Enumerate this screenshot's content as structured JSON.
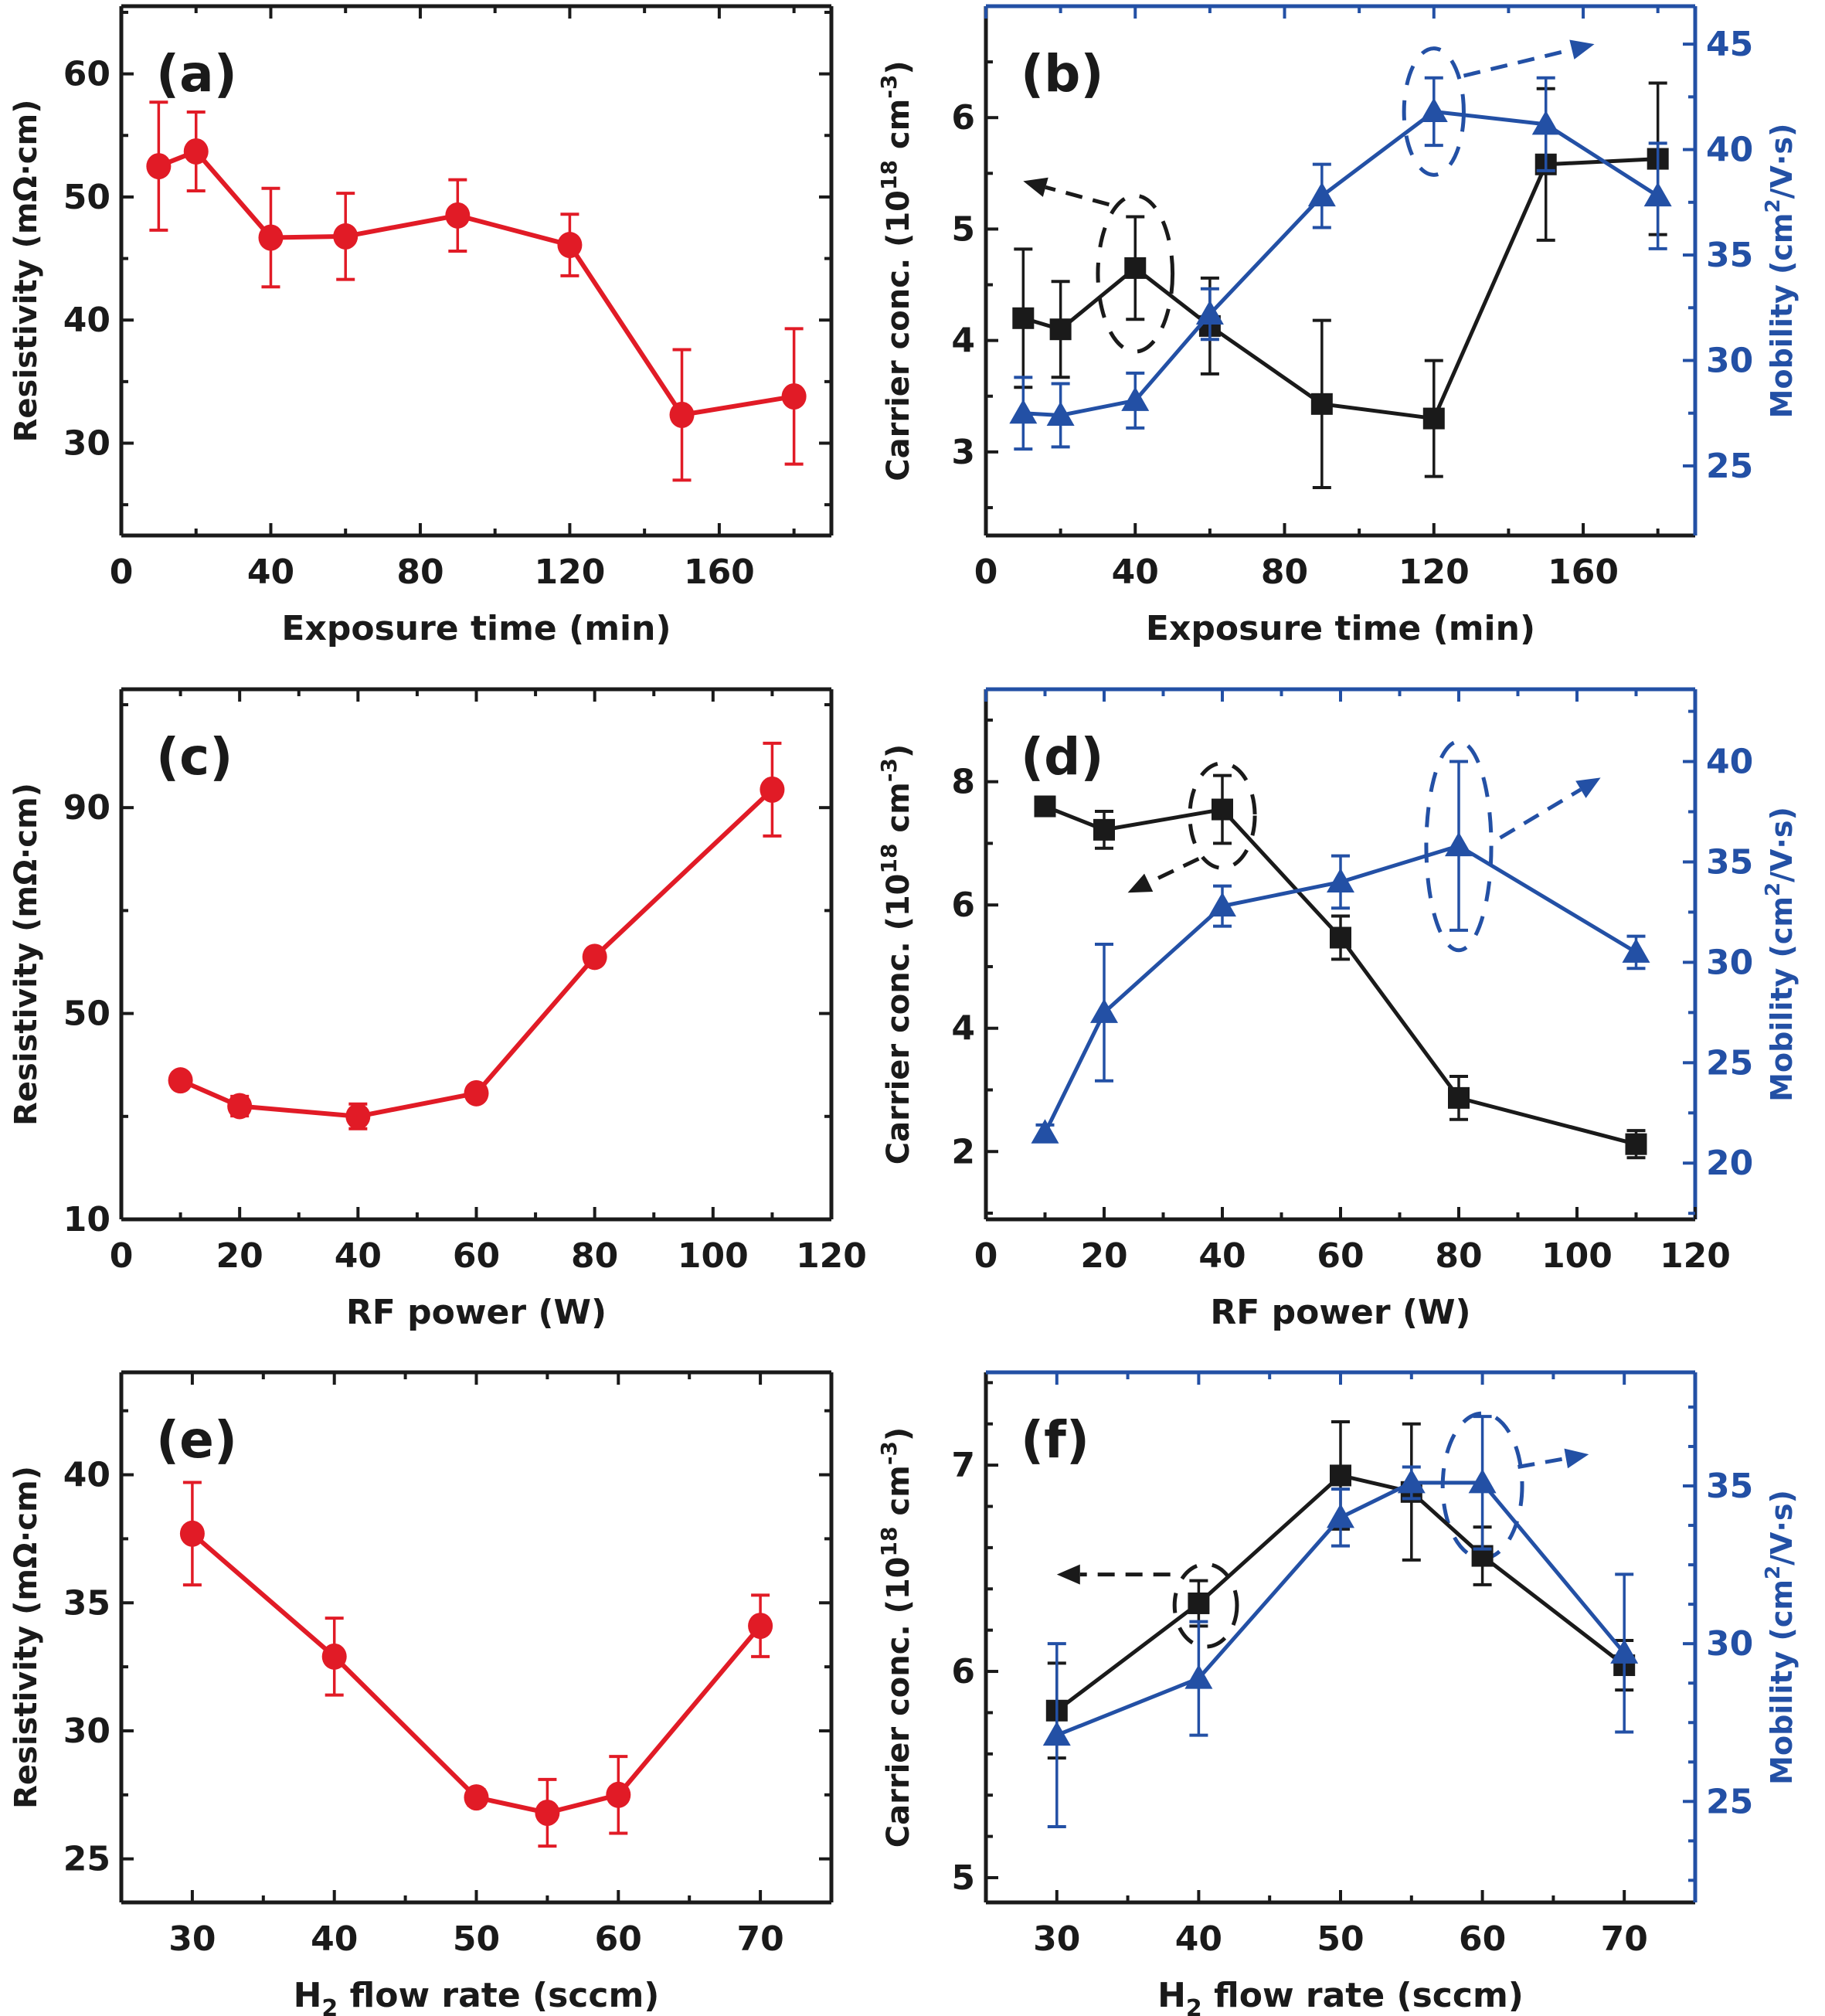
{
  "colors": {
    "resistivity": "#e11b26",
    "carrier": "#1a1a1a",
    "mobility": "#2350a5",
    "axis_black": "#1a1a1a"
  },
  "chart_data": [
    {
      "panel": "(a)",
      "type": "line",
      "xlabel": "Exposure time (min)",
      "ylabel": "Resistivity (mΩ·cm)",
      "xlim": [
        0,
        190
      ],
      "ylim": [
        22.5,
        65.5
      ],
      "xticks": [
        0,
        40,
        80,
        120,
        160
      ],
      "xminor": [
        20,
        60,
        100,
        140,
        180
      ],
      "yticks": [
        30,
        40,
        50,
        60
      ],
      "yminor": [
        25,
        35,
        45,
        55,
        65
      ],
      "series": [
        {
          "name": "Resistivity",
          "axis": "left",
          "marker": "circle",
          "color_key": "resistivity",
          "x": [
            10,
            20,
            40,
            60,
            90,
            120,
            150,
            180
          ],
          "y": [
            52.5,
            53.7,
            46.7,
            46.8,
            48.5,
            46.1,
            32.3,
            33.8
          ],
          "err": [
            5.2,
            3.2,
            4.0,
            3.5,
            2.9,
            2.5,
            5.3,
            5.5
          ]
        }
      ],
      "annotations": []
    },
    {
      "panel": "(b)",
      "type": "line",
      "xlabel": "Exposure time (min)",
      "ylabel": "Carrier conc. (10^18 cm^-3)",
      "ylabel_parts": {
        "base": "Carrier conc. (10",
        "sup1": "18",
        "mid": " cm",
        "sup2": "-3",
        "end": ")"
      },
      "ylabel_right": "Mobility (cm^2/V·s)",
      "ylabel_right_parts": {
        "base": "Mobility (cm",
        "sup": "2",
        "end": "/V·s)"
      },
      "xlim": [
        0,
        190
      ],
      "ylim": [
        2.25,
        7.0
      ],
      "ylim_right": [
        21.7,
        46.8
      ],
      "xticks": [
        0,
        40,
        80,
        120,
        160
      ],
      "xminor": [
        20,
        60,
        100,
        140,
        180
      ],
      "yticks": [
        3,
        4,
        5,
        6
      ],
      "yminor": [
        2.5,
        3.5,
        4.5,
        5.5,
        6.5
      ],
      "yticks_right": [
        25,
        30,
        35,
        40,
        45
      ],
      "yminor_right": [
        27.5,
        32.5,
        37.5,
        42.5
      ],
      "series": [
        {
          "name": "Carrier concentration",
          "axis": "left",
          "marker": "square",
          "color_key": "carrier",
          "x": [
            10,
            20,
            40,
            60,
            90,
            120,
            150,
            180
          ],
          "y": [
            4.2,
            4.1,
            4.65,
            4.13,
            3.43,
            3.3,
            5.58,
            5.63
          ],
          "err": [
            0.62,
            0.43,
            0.46,
            0.43,
            0.75,
            0.52,
            0.68,
            0.68
          ]
        },
        {
          "name": "Mobility",
          "axis": "right",
          "marker": "triangle",
          "color_key": "mobility",
          "x": [
            10,
            20,
            40,
            60,
            90,
            120,
            150,
            180
          ],
          "y": [
            27.5,
            27.4,
            28.1,
            32.2,
            37.8,
            41.8,
            41.2,
            37.8
          ],
          "err": [
            1.7,
            1.5,
            1.3,
            1.2,
            1.5,
            1.6,
            2.2,
            2.5
          ]
        }
      ],
      "annotations": [
        {
          "type": "ellipse",
          "target": "left",
          "cx": 40,
          "cy": 4.6,
          "rx": 10,
          "ry": 0.7,
          "color_key": "carrier"
        },
        {
          "type": "arrow",
          "direction": "left",
          "from": [
            33,
            5.22
          ],
          "to": [
            10,
            5.43
          ],
          "color_key": "carrier"
        },
        {
          "type": "ellipse",
          "target": "right",
          "cx": 120,
          "cy": 41.8,
          "rx": 8,
          "ry": 3.0,
          "color_key": "mobility"
        },
        {
          "type": "arrow",
          "direction": "right",
          "from": [
            128,
            43.5
          ],
          "to": [
            163,
            45
          ],
          "color_key": "mobility"
        }
      ]
    },
    {
      "panel": "(c)",
      "type": "line",
      "xlabel": "RF power (W)",
      "ylabel": "Resistivity (mΩ·cm)",
      "xlim": [
        0,
        120
      ],
      "ylim": [
        10,
        113
      ],
      "xticks": [
        0,
        20,
        40,
        60,
        80,
        100,
        120
      ],
      "xminor": [
        10,
        30,
        50,
        70,
        90,
        110
      ],
      "yticks": [
        10,
        50,
        90
      ],
      "yminor": [
        30,
        70,
        110
      ],
      "series": [
        {
          "name": "Resistivity",
          "axis": "left",
          "marker": "circle",
          "color_key": "resistivity",
          "x": [
            10,
            20,
            40,
            60,
            80,
            110
          ],
          "y": [
            37,
            32,
            30,
            34.5,
            61,
            93.5
          ],
          "err": [
            0,
            1.9,
            2.4,
            0,
            0,
            9
          ]
        }
      ],
      "annotations": []
    },
    {
      "panel": "(d)",
      "type": "line",
      "xlabel": "RF power (W)",
      "ylabel": "Carrier conc. (10^18 cm^-3)",
      "ylabel_parts": {
        "base": "Carrier conc. (10",
        "sup1": "18",
        "mid": " cm",
        "sup2": "-3",
        "end": ")"
      },
      "ylabel_right": "Mobility (cm^2/V·s)",
      "ylabel_right_parts": {
        "base": "Mobility (cm",
        "sup": "2",
        "end": "/V·s)"
      },
      "xlim": [
        0,
        120
      ],
      "ylim": [
        0.9,
        9.5
      ],
      "ylim_right": [
        17.2,
        43.6
      ],
      "xticks": [
        0,
        20,
        40,
        60,
        80,
        100,
        120
      ],
      "xminor": [
        10,
        30,
        50,
        70,
        90,
        110
      ],
      "yticks": [
        2,
        4,
        6,
        8
      ],
      "yminor": [
        1,
        3,
        5,
        7,
        9
      ],
      "yticks_right": [
        20,
        25,
        30,
        35,
        40
      ],
      "yminor_right": [
        17.5,
        22.5,
        27.5,
        32.5,
        37.5,
        42.5
      ],
      "series": [
        {
          "name": "Carrier concentration",
          "axis": "left",
          "marker": "square",
          "color_key": "carrier",
          "x": [
            10,
            20,
            40,
            60,
            80,
            110
          ],
          "y": [
            7.6,
            7.22,
            7.55,
            5.47,
            2.87,
            2.12
          ],
          "err": [
            0.15,
            0.3,
            0.55,
            0.35,
            0.35,
            0.22
          ]
        },
        {
          "name": "Mobility",
          "axis": "right",
          "marker": "triangle",
          "color_key": "mobility",
          "x": [
            10,
            20,
            40,
            60,
            80,
            110
          ],
          "y": [
            21.5,
            27.5,
            32.8,
            34.0,
            35.8,
            30.5
          ],
          "err": [
            0.4,
            3.4,
            1.0,
            1.3,
            4.2,
            0.8
          ]
        }
      ],
      "annotations": [
        {
          "type": "ellipse",
          "target": "left",
          "cx": 40,
          "cy": 7.45,
          "rx": 5.5,
          "ry": 0.85,
          "color_key": "carrier"
        },
        {
          "type": "arrow",
          "direction": "left",
          "from": [
            36,
            6.75
          ],
          "to": [
            24,
            6.2
          ],
          "color_key": "carrier"
        },
        {
          "type": "ellipse",
          "target": "right",
          "cx": 80,
          "cy": 35.8,
          "rx": 5.5,
          "ry": 5.2,
          "color_key": "mobility"
        },
        {
          "type": "arrow",
          "direction": "right",
          "from": [
            87,
            36.2
          ],
          "to": [
            104,
            39.2
          ],
          "color_key": "mobility"
        }
      ]
    },
    {
      "panel": "(e)",
      "type": "line",
      "xlabel": "H2 flow rate (sccm)",
      "xlabel_parts": {
        "base": "H",
        "sub": "2",
        "end": " flow rate (sccm)"
      },
      "ylabel": "Resistivity (mΩ·cm)",
      "xlim": [
        25,
        75
      ],
      "ylim": [
        23.3,
        44.0
      ],
      "xticks": [
        30,
        40,
        50,
        60,
        70
      ],
      "xminor": [
        35,
        45,
        55,
        65
      ],
      "yticks": [
        25,
        30,
        35,
        40
      ],
      "yminor": [
        27.5,
        32.5,
        37.5,
        42.5
      ],
      "series": [
        {
          "name": "Resistivity",
          "axis": "left",
          "marker": "circle",
          "color_key": "resistivity",
          "x": [
            30,
            40,
            50,
            55,
            60,
            70
          ],
          "y": [
            37.7,
            32.9,
            27.4,
            26.8,
            27.5,
            34.1
          ],
          "err": [
            2.0,
            1.5,
            0.3,
            1.3,
            1.5,
            1.2
          ]
        }
      ],
      "annotations": []
    },
    {
      "panel": "(f)",
      "type": "line",
      "xlabel": "H2 flow rate (sccm)",
      "xlabel_parts": {
        "base": "H",
        "sub": "2",
        "end": " flow rate (sccm)"
      },
      "ylabel": "Carrier conc. (10^18 cm^-3)",
      "ylabel_parts": {
        "base": "Carrier conc. (10",
        "sup1": "18",
        "mid": " cm",
        "sup2": "-3",
        "end": ")"
      },
      "ylabel_right": "Mobility (cm^2/V·s)",
      "ylabel_right_parts": {
        "base": "Mobility (cm",
        "sup": "2",
        "end": "/V·s)"
      },
      "xlim": [
        25,
        75
      ],
      "ylim": [
        4.88,
        7.45
      ],
      "ylim_right": [
        21.8,
        38.6
      ],
      "xticks": [
        30,
        40,
        50,
        60,
        70
      ],
      "xminor": [
        35,
        45,
        55,
        65
      ],
      "yticks": [
        5,
        6,
        7
      ],
      "yminor": [
        5.2,
        5.4,
        5.6,
        5.8,
        6.2,
        6.4,
        6.6,
        6.8,
        7.2,
        7.4
      ],
      "yticks_right": [
        25,
        30,
        35
      ],
      "yminor_right": [
        22.5,
        23.75,
        26.25,
        27.5,
        28.75,
        31.25,
        32.5,
        33.75,
        36.25,
        37.5
      ],
      "series": [
        {
          "name": "Carrier concentration",
          "axis": "left",
          "marker": "square",
          "color_key": "carrier",
          "x": [
            30,
            40,
            50,
            55,
            60,
            70
          ],
          "y": [
            5.81,
            6.33,
            6.95,
            6.87,
            6.56,
            6.03
          ],
          "err": [
            0.23,
            0.11,
            0.26,
            0.33,
            0.14,
            0.12
          ]
        },
        {
          "name": "Mobility",
          "axis": "right",
          "marker": "triangle",
          "color_key": "mobility",
          "x": [
            30,
            40,
            50,
            55,
            60,
            70
          ],
          "y": [
            27.1,
            28.9,
            34.0,
            35.1,
            35.1,
            29.7
          ],
          "err": [
            2.9,
            1.8,
            0.9,
            0.5,
            2.1,
            2.5
          ]
        }
      ],
      "annotations": [
        {
          "type": "ellipse",
          "target": "left",
          "cx": 40.5,
          "cy": 6.32,
          "rx": 2.2,
          "ry": 0.2,
          "color_key": "carrier"
        },
        {
          "type": "arrow",
          "direction": "left",
          "from": [
            38,
            6.47
          ],
          "to": [
            30,
            6.47
          ],
          "color_key": "carrier"
        },
        {
          "type": "ellipse",
          "target": "right",
          "cx": 60,
          "cy": 35.0,
          "rx": 2.8,
          "ry": 2.3,
          "color_key": "mobility"
        },
        {
          "type": "arrow",
          "direction": "right",
          "from": [
            62.5,
            35.6
          ],
          "to": [
            67.5,
            36.0
          ],
          "color_key": "mobility"
        }
      ]
    }
  ]
}
